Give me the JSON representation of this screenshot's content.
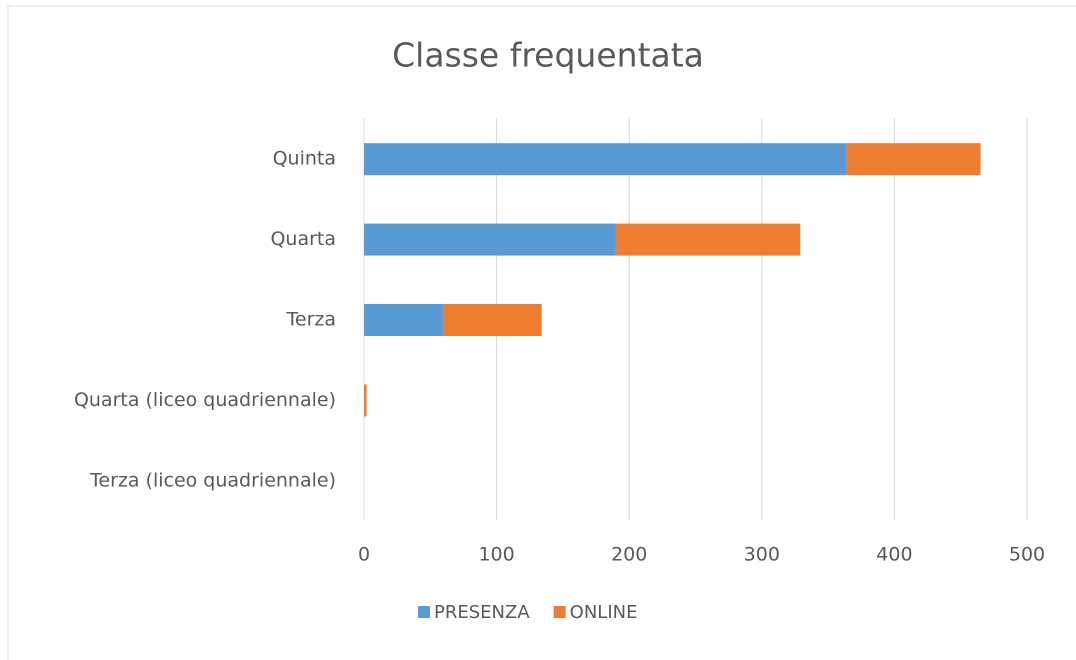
{
  "chart_data": {
    "type": "bar",
    "orientation": "horizontal",
    "stacked": true,
    "title": "Classe frequentata",
    "categories": [
      "Quinta",
      "Quarta",
      "Terza",
      "Quarta (liceo quadriennale)",
      "Terza (liceo quadriennale)"
    ],
    "series": [
      {
        "name": "PRESENZA",
        "color": "#5b9bd5",
        "values": [
          364,
          190,
          60,
          0,
          0
        ]
      },
      {
        "name": "ONLINE",
        "color": "#ed7d31",
        "values": [
          101,
          139,
          74,
          2,
          0
        ]
      }
    ],
    "xlim": [
      0,
      500
    ],
    "xticks": [
      0,
      100,
      200,
      300,
      400,
      500
    ],
    "grid": true,
    "legend": "bottom"
  }
}
